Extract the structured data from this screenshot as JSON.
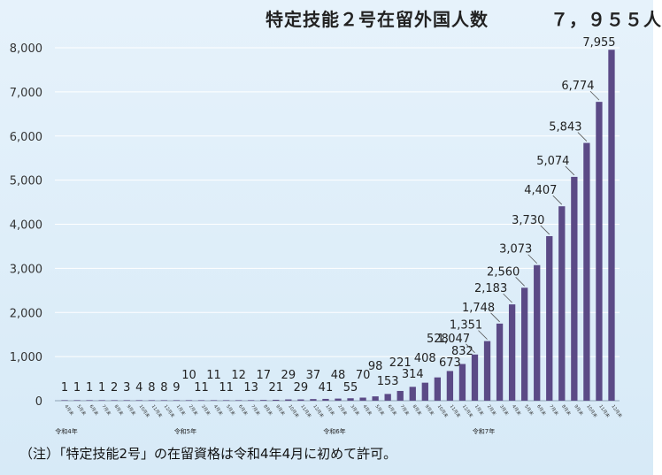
{
  "title": "特定技能２号在留外国人数",
  "total_label": "７，９５５人",
  "note": "（注）「特定技能2号」の在留資格は令和4年4月に初めて許可。",
  "colors": {
    "bar": "#5b4a86",
    "bar_top": "#6d5c9c",
    "background": "#deeef9",
    "gridline": "#ffffff",
    "leader": "#555555"
  },
  "chart_data": {
    "type": "bar",
    "title": "特定技能２号在留外国人数",
    "xlabel": "",
    "ylabel": "",
    "ylim": [
      0,
      8000
    ],
    "yticks": [
      "0",
      "1,000",
      "2,000",
      "3,000",
      "4,000",
      "5,000",
      "6,000",
      "7,000",
      "8,000"
    ],
    "grid": true,
    "categories": [
      "4月末",
      "5月末",
      "6月末",
      "7月末",
      "8月末",
      "9月末",
      "10月末",
      "11月末",
      "12月末",
      "1月末",
      "2月末",
      "3月末",
      "4月末",
      "5月末",
      "6月末",
      "7月末",
      "8月末",
      "9月末",
      "10月末",
      "11月末",
      "12月末",
      "1月末",
      "2月末",
      "3月末",
      "4月末",
      "5月末",
      "6月末",
      "7月末",
      "8月末",
      "9月末",
      "10月末",
      "11月末",
      "12月末",
      "1月末",
      "2月末",
      "3月末",
      "4月末",
      "5月末",
      "6月末",
      "7月末",
      "8月末",
      "9月末",
      "10月末",
      "11月末",
      "12月末"
    ],
    "values": [
      1,
      1,
      1,
      1,
      2,
      3,
      4,
      8,
      8,
      9,
      10,
      11,
      11,
      11,
      12,
      13,
      17,
      21,
      29,
      29,
      37,
      41,
      48,
      55,
      70,
      98,
      153,
      221,
      314,
      408,
      528,
      673,
      832,
      1047,
      1351,
      1748,
      2183,
      2560,
      3073,
      3730,
      4407,
      5074,
      5843,
      6774,
      7955
    ],
    "data_labels": [
      "1",
      "1",
      "1",
      "1",
      "2",
      "3",
      "4",
      "8",
      "8",
      "9",
      "10",
      "11",
      "11",
      "11",
      "12",
      "13",
      "17",
      "21",
      "29",
      "29",
      "37",
      "41",
      "48",
      "55",
      "70",
      "98",
      "153",
      "221",
      "314",
      "408",
      "528",
      "673",
      "832",
      "1,047",
      "1,351",
      "1,748",
      "2,183",
      "2,560",
      "3,073",
      "3,730",
      "4,407",
      "5,074",
      "5,843",
      "6,774",
      "7,955"
    ],
    "year_groups": [
      {
        "label": "令和4年",
        "start": 0
      },
      {
        "label": "令和5年",
        "start": 9
      },
      {
        "label": "令和6年",
        "start": 21
      },
      {
        "label": "令和7年",
        "start": 33
      }
    ]
  }
}
